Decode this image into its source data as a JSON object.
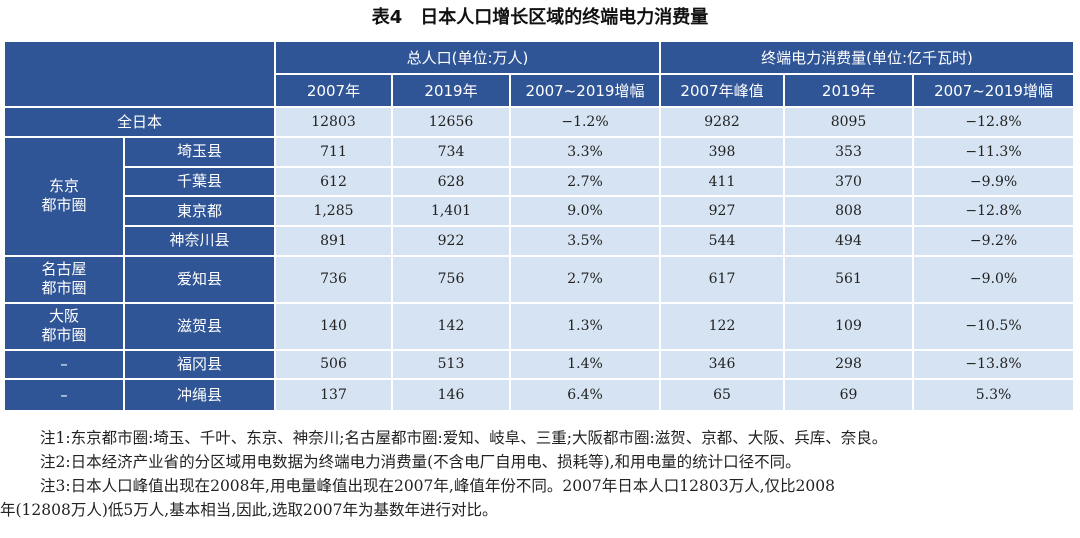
{
  "title": "表4　日本人口增长区域的终端电力消费量",
  "header": {
    "group1": "总人口(单位:万人)",
    "group2": "终端电力消费量(单位:亿千瓦时)",
    "cols": [
      "2007年",
      "2019年",
      "2007~2019增幅",
      "2007年峰值",
      "2019年",
      "2007~2019增幅"
    ]
  },
  "rows": {
    "total": {
      "label": "全日本",
      "values": [
        "12803",
        "12656",
        "−1.2%",
        "9282",
        "8095",
        "−12.8%"
      ]
    },
    "tokyo_group": "东京\n都市圈",
    "saitama": {
      "label": "埼玉县",
      "values": [
        "711",
        "734",
        "3.3%",
        "398",
        "353",
        "−11.3%"
      ]
    },
    "chiba": {
      "label": "千葉县",
      "values": [
        "612",
        "628",
        "2.7%",
        "411",
        "370",
        "−9.9%"
      ]
    },
    "tokyo": {
      "label": "東京都",
      "values": [
        "1,285",
        "1,401",
        "9.0%",
        "927",
        "808",
        "−12.8%"
      ]
    },
    "kanagawa": {
      "label": "神奈川县",
      "values": [
        "891",
        "922",
        "3.5%",
        "544",
        "494",
        "−9.2%"
      ]
    },
    "nagoya_group": "名古屋\n都市圈",
    "aichi": {
      "label": "爱知县",
      "values": [
        "736",
        "756",
        "2.7%",
        "617",
        "561",
        "−9.0%"
      ]
    },
    "osaka_group": "大阪\n都市圈",
    "shiga": {
      "label": "滋贺县",
      "values": [
        "140",
        "142",
        "1.3%",
        "122",
        "109",
        "−10.5%"
      ]
    },
    "fukuoka_group": "–",
    "fukuoka": {
      "label": "福冈县",
      "values": [
        "506",
        "513",
        "1.4%",
        "346",
        "298",
        "−13.8%"
      ]
    },
    "okinawa_group": "–",
    "okinawa": {
      "label": "冲绳县",
      "values": [
        "137",
        "146",
        "6.4%",
        "65",
        "69",
        "5.3%"
      ]
    }
  },
  "notes": {
    "n1": "注1:东京都市圈:埼玉、千叶、东京、神奈川;名古屋都市圈:爱知、岐阜、三重;大阪都市圈:滋贺、京都、大阪、兵库、奈良。",
    "n2": "注2:日本经济产业省的分区域用电数据为终端电力消费量(不含电厂自用电、损耗等),和用电量的统计口径不同。",
    "n3a": "注3:日本人口峰值出现在2008年,用电量峰值出现在2007年,峰值年份不同。2007年日本人口12803万人,仅比2008",
    "n3b": "年(12808万人)低5万人,基本相当,因此,选取2007年为基数年进行对比。"
  }
}
